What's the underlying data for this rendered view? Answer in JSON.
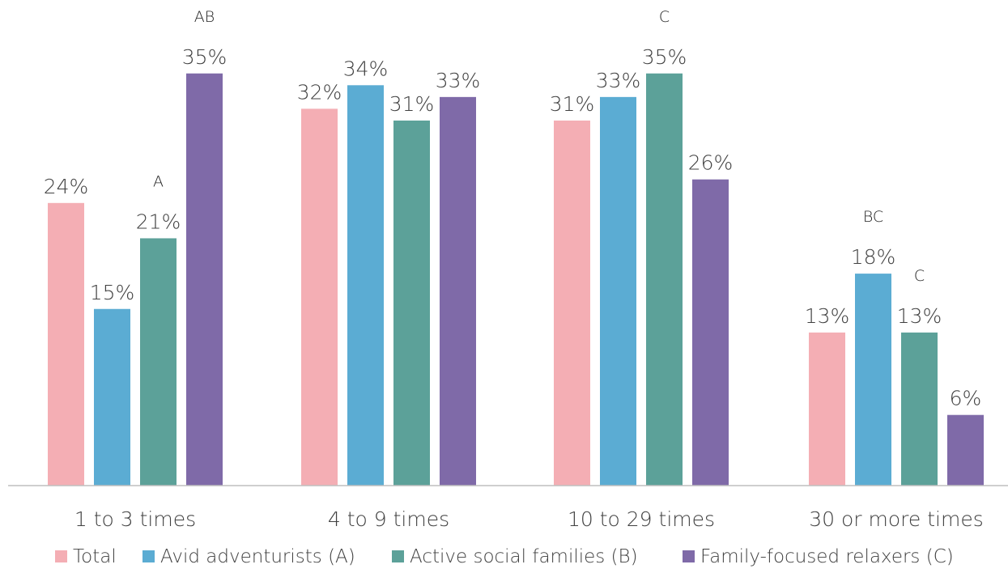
{
  "chart_data": {
    "type": "bar",
    "categories": [
      "1 to 3 times",
      "4 to 9 times",
      "10 to 29 times",
      "30 or more times"
    ],
    "series": [
      {
        "name": "Total",
        "color": "#F4AEB4",
        "values": [
          24,
          32,
          31,
          13
        ],
        "labels": [
          "24%",
          "32%",
          "31%",
          "13%"
        ],
        "sig": [
          "",
          "",
          "",
          ""
        ]
      },
      {
        "name": "Avid adventurists (A)",
        "color": "#5BACD3",
        "values": [
          15,
          34,
          33,
          18
        ],
        "labels": [
          "15%",
          "34%",
          "33%",
          "18%"
        ],
        "sig": [
          "",
          "",
          "",
          "BC"
        ]
      },
      {
        "name": "Active social families (B)",
        "color": "#5CA199",
        "values": [
          21,
          31,
          35,
          13
        ],
        "labels": [
          "21%",
          "31%",
          "35%",
          "13%"
        ],
        "sig": [
          "A",
          "",
          "C",
          "C"
        ]
      },
      {
        "name": "Family-focused relaxers (C)",
        "color": "#7F6AA8",
        "values": [
          35,
          33,
          26,
          6
        ],
        "labels": [
          "35%",
          "33%",
          "26%",
          "6%"
        ],
        "sig": [
          "AB",
          "",
          "",
          ""
        ]
      }
    ],
    "ylim": [
      0,
      40
    ],
    "grid": false,
    "legend_position": "bottom",
    "axis_color": "#BFBFBF"
  }
}
